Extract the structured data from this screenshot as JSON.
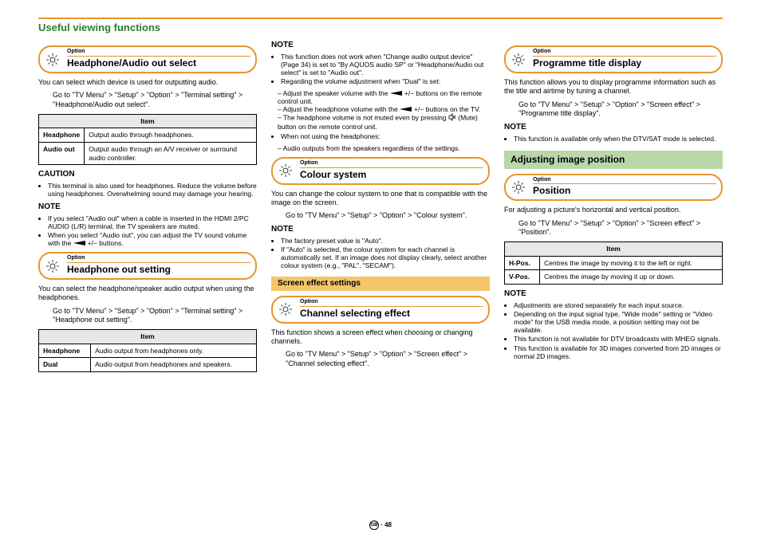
{
  "page": {
    "title": "Useful viewing functions",
    "footer": "· 48",
    "colors": {
      "accent_orange": "#e8952e",
      "subbar_bg": "#f4c56a",
      "greenbar_bg": "#b9d8aa",
      "title_green": "#2e7d32",
      "table_header_bg": "#e8e8e8"
    }
  },
  "labels": {
    "option": "Option",
    "caution": "CAUTION",
    "note": "NOTE",
    "item": "Item"
  },
  "col1": {
    "s1": {
      "title": "Headphone/Audio out select",
      "intro": "You can select which device is used for outputting audio.",
      "path": "Go to \"TV Menu\" > \"Setup\" > \"Option\" > \"Terminal setting\" > \"Headphone/Audio out select\".",
      "table": {
        "rows": [
          {
            "k": "Headphone",
            "v": "Output audio through headphones."
          },
          {
            "k": "Audio out",
            "v": "Output audio through an A/V receiver or surround audio controller."
          }
        ]
      },
      "caution_items": [
        "This terminal is also used for headphones. Reduce the volume before using headphones. Overwhelming sound may damage your hearing."
      ],
      "note_items": [
        "If you select \"Audio out\" when a cable is inserted in the HDMI 2/PC AUDIO (L/R) terminal, the TV speakers are muted.",
        "When you select \"Audio out\", you can adjust the TV sound volume with the __VOL__+/− buttons."
      ]
    },
    "s2": {
      "title": "Headphone out setting",
      "intro": "You can select the headphone/speaker audio output when using the headphones.",
      "path": "Go to \"TV Menu\" > \"Setup\" > \"Option\" > \"Terminal setting\" > \"Headphone out setting\".",
      "table": {
        "rows": [
          {
            "k": "Headphone",
            "v": "Audio output from headphones only."
          },
          {
            "k": "Dual",
            "v": "Audio output from headphones and speakers."
          }
        ]
      }
    }
  },
  "col2": {
    "note1": {
      "items": [
        "This function does not work when \"Change audio output device\" (Page 34) is set to \"By AQUOS audio SP\" or \"Headphone/Audio out select\" is set to \"Audio out\".",
        "Regarding the volume adjustment when \"Dual\" is set:"
      ],
      "dashes": [
        "Adjust the speaker volume with the __VOL__+/− buttons on the remote control unit.",
        "Adjust the headphone volume with the __VOL__+/− buttons on the TV.",
        "The headphone volume is not muted even by pressing __MUTE__ (Mute) button on the remote control unit."
      ],
      "items2": [
        "When not using the headphones:"
      ],
      "dashes2": [
        "Audio outputs from the speakers regardless of the settings."
      ]
    },
    "s3": {
      "title": "Colour system",
      "intro": "You can change the colour system to one that is compatible with the image on the screen.",
      "path": "Go to \"TV Menu\" > \"Setup\" > \"Option\" > \"Colour system\".",
      "note_items": [
        "The factory preset value is \"Auto\".",
        "If \"Auto\" is selected, the colour system for each channel is automatically set. If an image does not display clearly, select another colour system (e.g., \"PAL\", \"SECAM\")."
      ]
    },
    "subbar": "Screen effect settings",
    "s4": {
      "title": "Channel selecting effect",
      "intro": "This function shows a screen effect when choosing or changing channels.",
      "path": "Go to \"TV Menu\" > \"Setup\" > \"Option\" > \"Screen effect\" > \"Channel selecting effect\"."
    }
  },
  "col3": {
    "s5": {
      "title": "Programme title display",
      "intro": "This function allows you to display programme information such as the title and airtime by tuning a channel.",
      "path": "Go to \"TV Menu\" > \"Setup\" > \"Option\" > \"Screen effect\" > \"Programme title display\".",
      "note_items": [
        "This function is available only when the DTV/SAT mode is selected."
      ]
    },
    "greenbar": "Adjusting image position",
    "s6": {
      "title": "Position",
      "intro": "For adjusting a picture's horizontal and vertical position.",
      "path": "Go to \"TV Menu\" > \"Setup\" > \"Option\" > \"Screen effect\" > \"Position\".",
      "table": {
        "rows": [
          {
            "k": "H-Pos.",
            "v": "Centres the image by moving it to the left or right."
          },
          {
            "k": "V-Pos.",
            "v": "Centres the image by moving it up or down."
          }
        ]
      },
      "note_items": [
        "Adjustments are stored separately for each input source.",
        "Depending on the input signal type, \"Wide mode\" setting or \"Video mode\" for the USB media mode, a position setting may not be available.",
        "This function is not available for DTV broadcasts with MHEG signals.",
        "This function is available for 3D images converted from 2D images or normal 2D images."
      ]
    }
  }
}
